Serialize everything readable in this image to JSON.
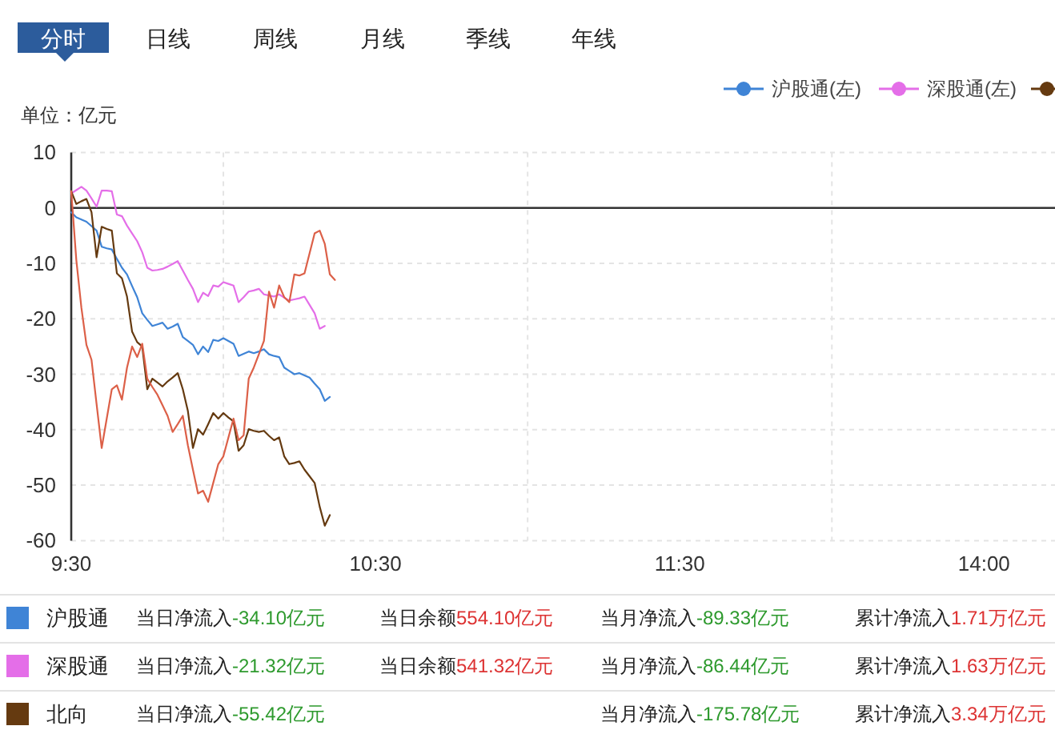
{
  "chart_data": {
    "type": "line",
    "ylabel": "单位：亿元",
    "categories": [
      "9:30",
      null,
      null,
      null,
      null,
      null,
      null,
      null,
      null,
      null,
      null,
      null,
      null,
      null,
      null,
      null,
      null,
      null,
      null,
      null,
      null,
      null,
      null,
      null,
      null,
      null,
      null,
      null,
      null,
      null,
      null,
      null,
      null,
      null,
      null,
      null,
      null,
      null,
      null,
      null,
      null,
      null,
      null,
      null,
      null,
      null,
      null,
      null,
      null,
      null,
      null,
      null,
      null,
      null,
      null,
      null,
      null,
      null,
      null,
      null,
      "10:30",
      null,
      null,
      null,
      null,
      null,
      null,
      null,
      null,
      null,
      null,
      null,
      null,
      null,
      null,
      null,
      null,
      null,
      null,
      null,
      null,
      null,
      null,
      null,
      null,
      null,
      null,
      null,
      null,
      null,
      null,
      null,
      null,
      null,
      null,
      null,
      null,
      null,
      null,
      null,
      null,
      null,
      null,
      null,
      null,
      null,
      null,
      null,
      null,
      null,
      null,
      null,
      null,
      null,
      null,
      null,
      null,
      null,
      null,
      null,
      "11:30",
      null,
      null,
      null,
      null,
      null,
      null,
      null,
      null,
      null,
      null,
      null,
      null,
      null,
      null,
      null,
      null,
      null,
      null,
      null,
      null,
      null,
      null,
      null,
      null,
      null,
      null,
      null,
      null,
      null,
      null,
      null,
      null,
      null,
      null,
      null,
      null,
      null,
      null,
      null,
      null,
      null,
      null,
      null,
      null,
      null,
      null,
      null,
      null,
      null,
      null,
      null,
      null,
      null,
      null,
      null,
      null,
      null,
      null,
      null,
      "14:00",
      null,
      null,
      null,
      null,
      null,
      null,
      null,
      null,
      null,
      null,
      null,
      null,
      null,
      null
    ],
    "ylim": [
      -60,
      10
    ],
    "yticks": [
      10,
      0,
      -10,
      -20,
      -30,
      -40,
      -50,
      -60
    ],
    "grid": true,
    "legend": "bottom",
    "ref_lines": [
      {
        "axis": "y",
        "value": 0,
        "color": "#333333"
      }
    ],
    "series": [
      {
        "name": "沪股通",
        "color": "#3f84d6",
        "values": [
          -0.8,
          -1.7,
          -2.1,
          -2.5,
          -3.3,
          -4.1,
          -7.0,
          -7.3,
          -7.5,
          -9.2,
          -10.8,
          -12.0,
          -14.1,
          -16.1,
          -19.0,
          -20.2,
          -21.3,
          -21.0,
          -20.7,
          -21.8,
          -21.4,
          -20.9,
          -23.3,
          -24.0,
          -24.7,
          -26.4,
          -25.0,
          -26.0,
          -23.8,
          -24.0,
          -23.5,
          -24.0,
          -24.5,
          -26.7,
          -26.3,
          -25.9,
          -26.2,
          -25.9,
          -25.5,
          -26.4,
          -26.7,
          -26.9,
          -28.8,
          -29.4,
          -30.0,
          -29.8,
          -30.2,
          -30.6,
          -31.7,
          -32.7,
          -34.8,
          -34.1,
          null,
          null,
          null,
          null,
          null,
          null,
          null,
          null,
          null,
          null,
          null,
          null,
          null,
          null,
          null,
          null,
          null,
          null,
          null,
          null,
          null,
          null,
          null,
          null,
          null,
          null,
          null,
          null,
          null,
          null,
          null,
          null,
          null,
          null,
          null,
          null,
          null,
          null,
          null,
          null,
          null,
          null,
          null,
          null,
          null,
          null,
          null,
          null,
          null,
          null,
          null,
          null,
          null,
          null,
          null,
          null,
          null,
          null,
          null,
          null,
          null,
          null,
          null,
          null,
          null,
          null,
          null,
          null,
          null,
          null,
          null,
          null,
          null,
          null,
          null,
          null,
          null,
          null,
          null,
          null,
          null,
          null,
          null,
          null,
          null,
          null,
          null,
          null,
          null,
          null,
          null,
          null,
          null,
          null,
          null,
          null,
          null,
          null,
          null,
          null,
          null,
          null,
          null,
          null,
          null,
          null,
          null,
          null,
          null,
          null,
          null,
          null,
          null,
          null,
          null,
          null,
          null,
          null,
          null,
          null,
          null,
          null,
          null,
          null,
          null,
          null,
          null,
          null,
          null,
          null,
          null,
          null,
          null,
          null,
          null,
          null,
          null,
          null,
          null,
          null,
          null,
          null,
          null
        ]
      },
      {
        "name": "深股通",
        "color": "#e46ee8",
        "values": [
          2.6,
          3.2,
          3.8,
          3.1,
          1.7,
          0.2,
          3.1,
          3.1,
          3.0,
          -1.2,
          -1.5,
          -3.2,
          -4.6,
          -6.0,
          -8.0,
          -10.8,
          -11.3,
          -11.2,
          -11.0,
          -10.6,
          -10.1,
          -9.6,
          -11.3,
          -13.0,
          -14.6,
          -17.0,
          -15.3,
          -15.9,
          -14.0,
          -14.2,
          -13.4,
          -13.7,
          -14.0,
          -17.0,
          -16.1,
          -15.1,
          -14.9,
          -14.6,
          -15.6,
          -15.8,
          -16.0,
          -15.6,
          -16.2,
          -16.7,
          -16.5,
          -16.3,
          -16.0,
          -17.5,
          -19.0,
          -21.8,
          -21.3,
          null,
          null,
          null,
          null,
          null,
          null,
          null,
          null,
          null,
          null,
          null,
          null,
          null,
          null,
          null,
          null,
          null,
          null,
          null,
          null,
          null,
          null,
          null,
          null,
          null,
          null,
          null,
          null,
          null,
          null,
          null,
          null,
          null,
          null,
          null,
          null,
          null,
          null,
          null,
          null,
          null,
          null,
          null,
          null,
          null,
          null,
          null,
          null,
          null,
          null,
          null,
          null,
          null,
          null,
          null,
          null,
          null,
          null,
          null,
          null,
          null,
          null,
          null,
          null,
          null,
          null,
          null,
          null,
          null,
          null,
          null,
          null,
          null,
          null,
          null,
          null,
          null,
          null,
          null,
          null,
          null,
          null,
          null,
          null,
          null,
          null,
          null,
          null,
          null,
          null,
          null,
          null,
          null,
          null,
          null,
          null,
          null,
          null,
          null,
          null,
          null,
          null,
          null,
          null,
          null,
          null,
          null,
          null,
          null,
          null,
          null,
          null,
          null,
          null,
          null,
          null,
          null,
          null,
          null,
          null,
          null,
          null,
          null,
          null,
          null,
          null,
          null,
          null,
          null,
          null,
          null,
          null,
          null,
          null,
          null,
          null,
          null,
          null,
          null,
          null,
          null,
          null,
          null,
          null
        ]
      },
      {
        "name": "北向",
        "color": "#653a10",
        "values": [
          3.0,
          0.7,
          1.2,
          1.6,
          -0.8,
          -8.9,
          -3.4,
          -3.8,
          -4.1,
          -11.8,
          -12.7,
          -16.0,
          -22.3,
          -24.2,
          -25.0,
          -32.7,
          -30.8,
          -31.5,
          -32.2,
          -31.3,
          -30.6,
          -29.8,
          -32.7,
          -36.6,
          -43.3,
          -39.9,
          -40.9,
          -39.0,
          -37.0,
          -38.0,
          -37.0,
          -37.8,
          -38.5,
          -43.8,
          -42.8,
          -39.9,
          -40.2,
          -40.4,
          -40.2,
          -41.1,
          -41.9,
          -41.4,
          -44.8,
          -46.2,
          -46.0,
          -45.7,
          -47.2,
          -48.4,
          -49.6,
          -53.9,
          -57.3,
          -55.4,
          null,
          null,
          null,
          null,
          null,
          null,
          null,
          null,
          null,
          null,
          null,
          null,
          null,
          null,
          null,
          null,
          null,
          null,
          null,
          null,
          null,
          null,
          null,
          null,
          null,
          null,
          null,
          null,
          null,
          null,
          null,
          null,
          null,
          null,
          null,
          null,
          null,
          null,
          null,
          null,
          null,
          null,
          null,
          null,
          null,
          null,
          null,
          null,
          null,
          null,
          null,
          null,
          null,
          null,
          null,
          null,
          null,
          null,
          null,
          null,
          null,
          null,
          null,
          null,
          null,
          null,
          null,
          null,
          null,
          null,
          null,
          null,
          null,
          null,
          null,
          null,
          null,
          null,
          null,
          null,
          null,
          null,
          null,
          null,
          null,
          null,
          null,
          null,
          null,
          null,
          null,
          null,
          null,
          null,
          null,
          null,
          null,
          null,
          null,
          null,
          null,
          null,
          null,
          null,
          null,
          null,
          null,
          null,
          null,
          null,
          null,
          null,
          null,
          null,
          null,
          null,
          null,
          null,
          null,
          null,
          null,
          null,
          null,
          null,
          null,
          null,
          null,
          null,
          null,
          null,
          null,
          null,
          null,
          null,
          null,
          null,
          null,
          null,
          null,
          null,
          null,
          null,
          null
        ]
      },
      {
        "color": "#dc6048",
        "values": [
          3.0,
          -9.4,
          -18.0,
          -24.7,
          -27.4,
          -35.4,
          -43.3,
          -38.0,
          -32.7,
          -32.0,
          -34.6,
          -28.8,
          -25.0,
          -26.9,
          -24.5,
          -30.8,
          -32.3,
          -33.7,
          -35.6,
          -37.5,
          -40.4,
          -39.0,
          -37.5,
          -42.8,
          -47.2,
          -51.5,
          -51.0,
          -53.0,
          -49.6,
          -46.2,
          -44.8,
          -41.4,
          -38.0,
          -41.9,
          -41.0,
          -30.8,
          -28.8,
          -26.4,
          -24.0,
          -15.1,
          -18.0,
          -14.0,
          -16.1,
          -17.0,
          -12.0,
          -12.2,
          -11.8,
          -8.2,
          -4.6,
          -4.1,
          -6.5,
          -12.0,
          -13.0,
          null,
          null,
          null,
          null,
          null,
          null,
          null,
          null,
          null,
          null,
          null,
          null,
          null,
          null,
          null,
          null,
          null,
          null,
          null,
          null,
          null,
          null,
          null,
          null,
          null,
          null,
          null,
          null,
          null,
          null,
          null,
          null,
          null,
          null,
          null,
          null,
          null,
          null,
          null,
          null,
          null,
          null,
          null,
          null,
          null,
          null,
          null,
          null,
          null,
          null,
          null,
          null,
          null,
          null,
          null,
          null,
          null,
          null,
          null,
          null,
          null,
          null,
          null,
          null,
          null,
          null,
          null,
          null,
          null,
          null,
          null,
          null,
          null,
          null,
          null,
          null,
          null,
          null,
          null,
          null,
          null,
          null,
          null,
          null,
          null,
          null,
          null,
          null,
          null,
          null,
          null,
          null,
          null,
          null,
          null,
          null,
          null,
          null,
          null,
          null,
          null,
          null,
          null,
          null,
          null,
          null,
          null,
          null,
          null,
          null,
          null,
          null,
          null,
          null,
          null,
          null,
          null,
          null,
          null,
          null,
          null,
          null,
          null,
          null,
          null,
          null,
          null,
          null,
          null,
          null,
          null,
          null,
          null,
          null,
          null,
          null,
          null,
          null,
          null,
          null,
          null,
          null
        ]
      }
    ],
    "annotations": [
      "分时",
      "日线",
      "周线",
      "月线",
      "季线",
      "年线",
      "沪股通(左)",
      "深股通(左)",
      "当日净流入-34.10亿元",
      "当日余额554.10亿元",
      "当月净流入-89.33亿元",
      "累计净流入1.71万亿元",
      "当日净流入-21.32亿元",
      "当日余额541.32亿元",
      "当月净流入-86.44亿元",
      "累计净流入1.63万亿元",
      "当日净流入-55.42亿元",
      "当月净流入-175.78亿元",
      "累计净流入3.34万亿元"
    ]
  }
}
